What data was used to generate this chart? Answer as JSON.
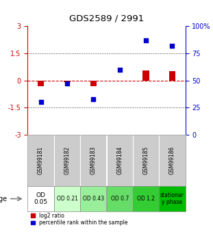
{
  "title": "GDS2589 / 2991",
  "samples": [
    "GSM99181",
    "GSM99182",
    "GSM99183",
    "GSM99184",
    "GSM99185",
    "GSM99186"
  ],
  "log2_ratio": [
    -0.3,
    -0.1,
    -0.3,
    0.0,
    0.55,
    0.5
  ],
  "percentile_rank": [
    30,
    47,
    33,
    60,
    87,
    82
  ],
  "ylim_left": [
    -3,
    3
  ],
  "ylim_right": [
    0,
    100
  ],
  "yticks_left": [
    -3,
    -1.5,
    0,
    1.5,
    3
  ],
  "yticks_right": [
    0,
    25,
    50,
    75,
    100
  ],
  "ytick_labels_left": [
    "-3",
    "-1.5",
    "0",
    "1.5",
    "3"
  ],
  "ytick_labels_right": [
    "0",
    "25",
    "50",
    "75",
    "100%"
  ],
  "hlines": [
    1.5,
    -1.5
  ],
  "bar_color_red": "#cc0000",
  "bar_color_blue": "#0000cc",
  "zero_line_color": "#cc0000",
  "age_labels": [
    "OD\n0.05",
    "OD 0.21",
    "OD 0.43",
    "OD 0.7",
    "OD 1.2",
    "stationar\ny phase"
  ],
  "age_colors": [
    "#ffffff",
    "#ccffcc",
    "#99ee99",
    "#66dd66",
    "#33cc33",
    "#00bb00"
  ],
  "gsm_bg_color": "#cccccc",
  "age_row_label": "age",
  "legend_red_label": "log2 ratio",
  "legend_blue_label": "percentile rank within the sample",
  "dotted_line_color": "#333333",
  "bar_width": 0.25
}
